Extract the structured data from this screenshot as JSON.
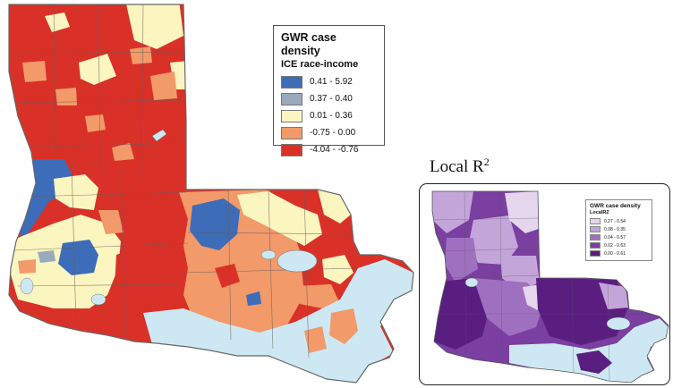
{
  "main_legend": {
    "title": "GWR case density",
    "subtitle": "ICE race-income",
    "classes": [
      {
        "label": "0.41 - 5.92",
        "color": "#3d6cb8"
      },
      {
        "label": "0.37 - 0.40",
        "color": "#9aa9bb"
      },
      {
        "label": "0.01 - 0.36",
        "color": "#fbf5c0"
      },
      {
        "label": "-0.75 - 0.00",
        "color": "#f29a6a"
      },
      {
        "label": "-4.04 - -0.76",
        "color": "#d93128"
      }
    ]
  },
  "main_map": {
    "water_color": "#cde8f3",
    "boundary_color": "#555555",
    "place_labels": [
      {
        "name": "Shreveport",
        "text": ""
      },
      {
        "name": "Lake Pontchartrain",
        "text": ""
      }
    ]
  },
  "inset": {
    "title_text": "Local R",
    "title_sup": "2",
    "legend": {
      "title": "GWR case density",
      "subtitle": "LocalR2",
      "classes": [
        {
          "label": "0.27 - 0.54",
          "color": "#e5d6ee"
        },
        {
          "label": "0.08 - 0.35",
          "color": "#c4a5d9"
        },
        {
          "label": "0.04 - 0.57",
          "color": "#a070c0"
        },
        {
          "label": "0.02 - 0.63",
          "color": "#7a3fa0"
        },
        {
          "label": "0.00 - 0.61",
          "color": "#5a1e80"
        }
      ]
    },
    "water_color": "#cde8f3"
  }
}
